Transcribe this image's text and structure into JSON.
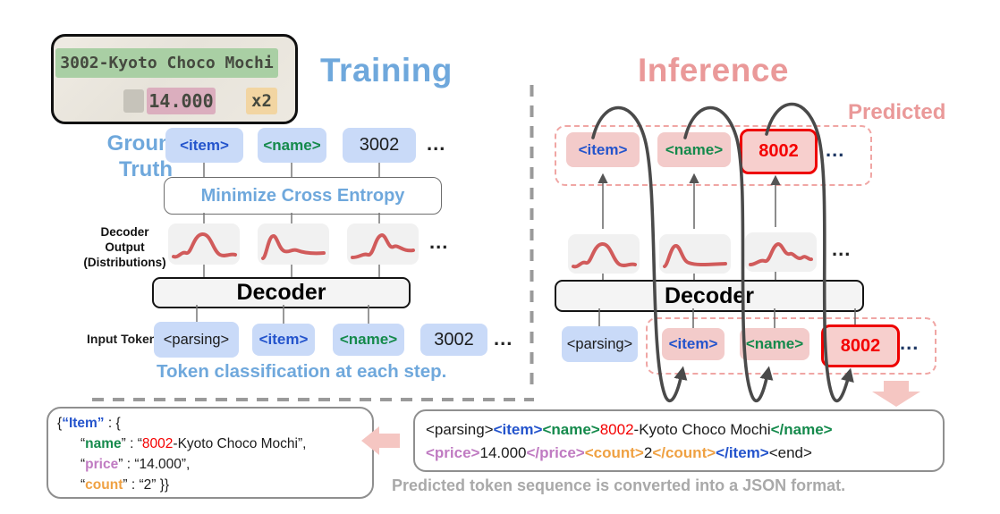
{
  "colors": {
    "blue": "#2454CC",
    "green": "#158A4C",
    "red": "#F40000",
    "purple": "#C07BC2",
    "orange": "#EFA143",
    "black": "#1C1C1C",
    "navy": "#1F3864",
    "sky": "#6FA8DC",
    "pink_title": "#EA9999",
    "pill_blue": "#C9DAF8",
    "pill_pink": "#F3CBCA",
    "curve_red": "#D15B5B",
    "caption_gray": "#A9A9A9"
  },
  "receipt": {
    "line1": "3002-Kyoto Choco Mochi",
    "price": "14.000",
    "qty": "x2"
  },
  "training": {
    "title": "Training",
    "ground_truth_line1": "Ground",
    "ground_truth_line2": "Truth",
    "gt_tokens": [
      {
        "text": "<item>",
        "color": "blue",
        "bold": true
      },
      {
        "text": "<name>",
        "color": "green",
        "bold": true
      },
      {
        "text": "3002",
        "color": "black"
      }
    ],
    "minimize_label": "Minimize Cross Entropy",
    "decoder_output_line1": "Decoder Output",
    "decoder_output_line2": "(Distributions)",
    "decoder_label": "Decoder",
    "input_tokens_label": "Input Tokens",
    "input_tokens": [
      {
        "text": "<parsing>",
        "color": "black"
      },
      {
        "text": "<item>",
        "color": "blue",
        "bold": true
      },
      {
        "text": "<name>",
        "color": "green",
        "bold": true
      },
      {
        "text": "3002",
        "color": "black"
      }
    ],
    "caption": "Token classification at each step.",
    "ellipsis": "..."
  },
  "inference": {
    "title": "Inference",
    "predicted_label": "Predicted",
    "output_tokens": [
      {
        "text": "<item>",
        "color": "blue",
        "bold": true
      },
      {
        "text": "<name>",
        "color": "green",
        "bold": true
      },
      {
        "text": "8002",
        "color": "red",
        "bold": true
      }
    ],
    "decoder_label": "Decoder",
    "input_tokens": [
      {
        "text": "<parsing>",
        "color": "black"
      },
      {
        "text": "<item>",
        "color": "blue",
        "bold": true
      },
      {
        "text": "<name>",
        "color": "green",
        "bold": true
      },
      {
        "text": "8002",
        "color": "red",
        "bold": true
      }
    ],
    "ellipsis": "..."
  },
  "json_output": {
    "lines": [
      [
        {
          "text": "{",
          "color": "black"
        },
        {
          "text": "“Item”",
          "color": "blue",
          "bold": true
        },
        {
          "text": " : {",
          "color": "black"
        }
      ],
      [
        {
          "text": "“",
          "color": "black"
        },
        {
          "text": "name",
          "color": "green",
          "bold": true
        },
        {
          "text": "” : “",
          "color": "black"
        },
        {
          "text": "8002",
          "color": "red"
        },
        {
          "text": "-Kyoto Choco Mochi”,",
          "color": "black"
        }
      ],
      [
        {
          "text": "“",
          "color": "black"
        },
        {
          "text": "price",
          "color": "purple",
          "bold": true
        },
        {
          "text": "” : “14.000”,",
          "color": "black"
        }
      ],
      [
        {
          "text": "“",
          "color": "black"
        },
        {
          "text": "count",
          "color": "orange",
          "bold": true
        },
        {
          "text": "” : “2” }}",
          "color": "black"
        }
      ]
    ]
  },
  "token_sequence": {
    "lines": [
      [
        {
          "text": "<parsing>",
          "color": "black"
        },
        {
          "text": "<item>",
          "color": "blue",
          "bold": true
        },
        {
          "text": "<name>",
          "color": "green",
          "bold": true
        },
        {
          "text": "8002",
          "color": "red"
        },
        {
          "text": "-Kyoto Choco Mochi",
          "color": "black"
        },
        {
          "text": "</name>",
          "color": "green",
          "bold": true
        }
      ],
      [
        {
          "text": "<price>",
          "color": "purple",
          "bold": true
        },
        {
          "text": "14.000",
          "color": "black"
        },
        {
          "text": "</price>",
          "color": "purple",
          "bold": true
        },
        {
          "text": "<count>",
          "color": "orange",
          "bold": true
        },
        {
          "text": "2",
          "color": "black"
        },
        {
          "text": "</count>",
          "color": "orange",
          "bold": true
        },
        {
          "text": "</item>",
          "color": "blue",
          "bold": true
        },
        {
          "text": "<end>",
          "color": "black"
        }
      ]
    ]
  },
  "footer_caption": "Predicted token sequence is converted into a JSON format."
}
